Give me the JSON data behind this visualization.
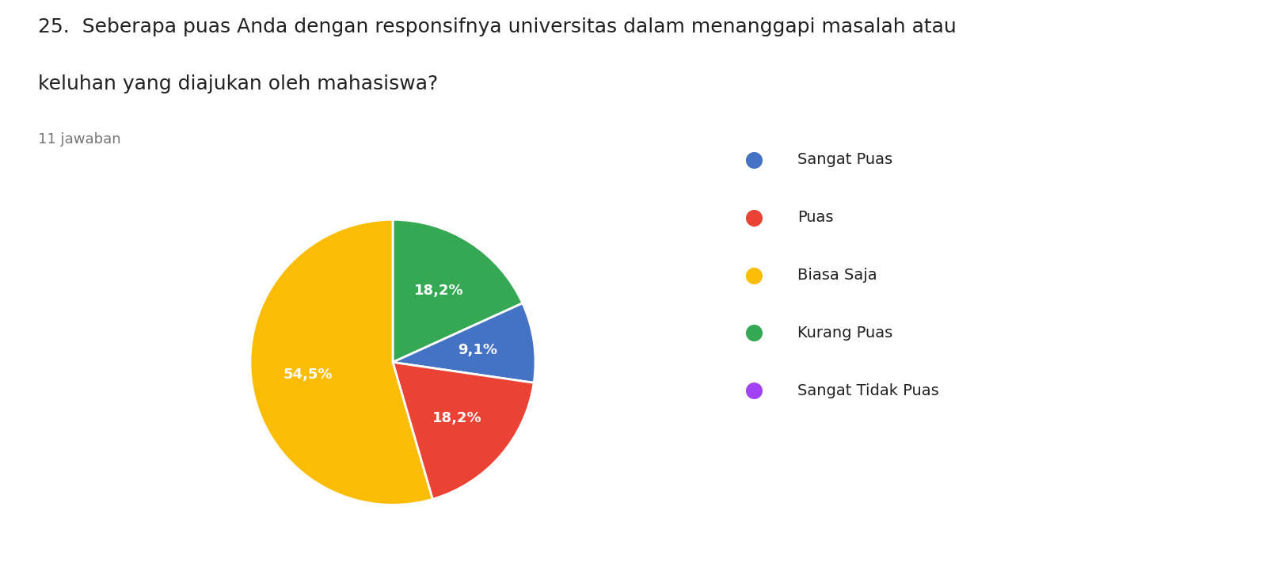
{
  "title_line1": "25.  Seberapa puas Anda dengan responsifnya universitas dalam menanggapi masalah atau",
  "title_line2": "keluhan yang diajukan oleh mahasiswa?",
  "subtitle": "11 jawaban",
  "labels": [
    "Sangat Puas",
    "Puas",
    "Biasa Saja",
    "Kurang Puas",
    "Sangat Tidak Puas"
  ],
  "values": [
    9.1,
    18.2,
    54.5,
    18.2,
    0
  ],
  "colors": [
    "#4472c4",
    "#ea4335",
    "#fbbc04",
    "#34a853",
    "#a142f4"
  ],
  "pie_order": [
    3,
    0,
    1,
    2
  ],
  "pie_values": [
    18.2,
    9.1,
    18.2,
    54.5
  ],
  "pie_colors": [
    "#34a853",
    "#4472c4",
    "#ea4335",
    "#fbbc04"
  ],
  "pct_labels": [
    "18,2%",
    "9,1%",
    "18,2%",
    "54,5%"
  ],
  "legend_labels": [
    "Sangat Puas",
    "Puas",
    "Biasa Saja",
    "Kurang Puas",
    "Sangat Tidak Puas"
  ],
  "legend_colors": [
    "#4472c4",
    "#ea4335",
    "#fbbc04",
    "#34a853",
    "#a142f4"
  ],
  "background_color": "#ffffff",
  "title_fontsize": 18,
  "subtitle_fontsize": 13,
  "legend_fontsize": 14,
  "pct_fontsize": 13,
  "startangle": 90
}
